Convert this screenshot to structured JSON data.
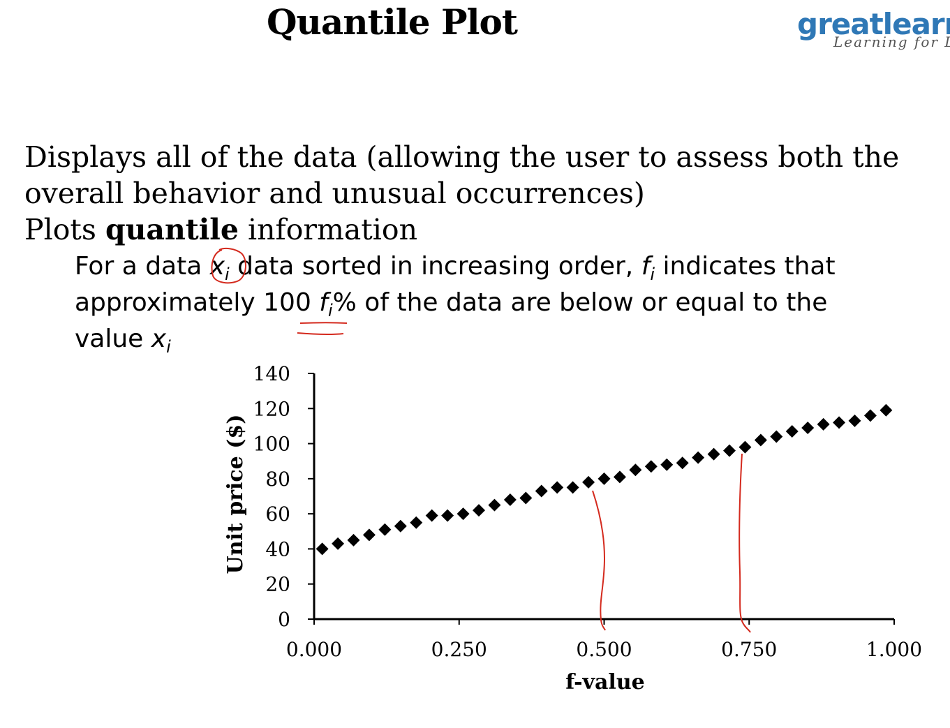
{
  "slide": {
    "title": "Quantile Plot",
    "logo": {
      "word": "greatlearn",
      "tagline": "Learning for L",
      "color": "#2f78b6"
    },
    "bullets": [
      {
        "text_line1": "Displays all of the data (allowing the user to assess both the",
        "text_line2": "overall behavior and unusual occurrences)"
      },
      {
        "text_before": "Plots ",
        "text_bold": "quantile",
        "text_after": " information"
      }
    ],
    "sub_bullet": {
      "line1_a": "For a data ",
      "x_var": "x",
      "x_sub": "i",
      "line1_b": " data sorted in increasing order, ",
      "f_var": "f",
      "f_sub": "i",
      "line1_c": " indicates that",
      "line2_a": "approximately 100 ",
      "line2_b": "% of the data are below or equal to the",
      "line3_a": "value "
    },
    "annotation_color": "#d42a1e"
  },
  "chart_data": {
    "type": "scatter",
    "title": "",
    "xlabel": "f-value",
    "ylabel": "Unit price ($)",
    "xlim": [
      0,
      1
    ],
    "ylim": [
      0,
      140
    ],
    "x_ticks": [
      "0.000",
      "0.250",
      "0.500",
      "0.750",
      "1.000"
    ],
    "x_tick_values": [
      0,
      0.25,
      0.5,
      0.75,
      1.0
    ],
    "y_ticks": [
      "0",
      "20",
      "40",
      "60",
      "80",
      "100",
      "120",
      "140"
    ],
    "y_tick_values": [
      0,
      20,
      40,
      60,
      80,
      100,
      120,
      140
    ],
    "marker": "diamond",
    "grid": false,
    "series": [
      {
        "points": [
          [
            0.014,
            40
          ],
          [
            0.041,
            43
          ],
          [
            0.068,
            45
          ],
          [
            0.095,
            48
          ],
          [
            0.122,
            51
          ],
          [
            0.149,
            53
          ],
          [
            0.176,
            55
          ],
          [
            0.203,
            59
          ],
          [
            0.23,
            59
          ],
          [
            0.257,
            60
          ],
          [
            0.284,
            62
          ],
          [
            0.311,
            65
          ],
          [
            0.338,
            68
          ],
          [
            0.365,
            69
          ],
          [
            0.392,
            73
          ],
          [
            0.419,
            75
          ],
          [
            0.446,
            75
          ],
          [
            0.473,
            78
          ],
          [
            0.5,
            80
          ],
          [
            0.527,
            81
          ],
          [
            0.554,
            85
          ],
          [
            0.581,
            87
          ],
          [
            0.608,
            88
          ],
          [
            0.635,
            89
          ],
          [
            0.662,
            92
          ],
          [
            0.689,
            94
          ],
          [
            0.716,
            96
          ],
          [
            0.743,
            98
          ],
          [
            0.77,
            102
          ],
          [
            0.797,
            104
          ],
          [
            0.824,
            107
          ],
          [
            0.851,
            109
          ],
          [
            0.878,
            111
          ],
          [
            0.905,
            112
          ],
          [
            0.932,
            113
          ],
          [
            0.959,
            116
          ],
          [
            0.986,
            119
          ]
        ]
      }
    ]
  }
}
